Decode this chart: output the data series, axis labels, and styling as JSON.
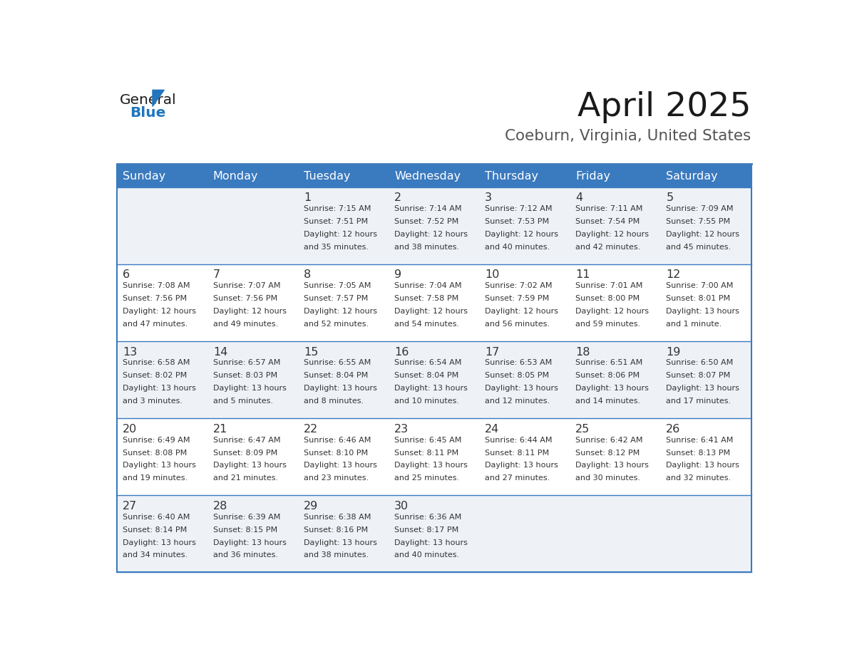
{
  "title": "April 2025",
  "subtitle": "Coeburn, Virginia, United States",
  "header_bg": "#3a7abf",
  "header_text_color": "#ffffff",
  "row_bg_light": "#eef2f7",
  "row_bg_white": "#ffffff",
  "day_headers": [
    "Sunday",
    "Monday",
    "Tuesday",
    "Wednesday",
    "Thursday",
    "Friday",
    "Saturday"
  ],
  "days": [
    {
      "day": 1,
      "col": 2,
      "row": 0,
      "sunrise": "7:15 AM",
      "sunset": "7:51 PM",
      "daylight_hrs": 12,
      "daylight_min": 35
    },
    {
      "day": 2,
      "col": 3,
      "row": 0,
      "sunrise": "7:14 AM",
      "sunset": "7:52 PM",
      "daylight_hrs": 12,
      "daylight_min": 38
    },
    {
      "day": 3,
      "col": 4,
      "row": 0,
      "sunrise": "7:12 AM",
      "sunset": "7:53 PM",
      "daylight_hrs": 12,
      "daylight_min": 40
    },
    {
      "day": 4,
      "col": 5,
      "row": 0,
      "sunrise": "7:11 AM",
      "sunset": "7:54 PM",
      "daylight_hrs": 12,
      "daylight_min": 42
    },
    {
      "day": 5,
      "col": 6,
      "row": 0,
      "sunrise": "7:09 AM",
      "sunset": "7:55 PM",
      "daylight_hrs": 12,
      "daylight_min": 45
    },
    {
      "day": 6,
      "col": 0,
      "row": 1,
      "sunrise": "7:08 AM",
      "sunset": "7:56 PM",
      "daylight_hrs": 12,
      "daylight_min": 47
    },
    {
      "day": 7,
      "col": 1,
      "row": 1,
      "sunrise": "7:07 AM",
      "sunset": "7:56 PM",
      "daylight_hrs": 12,
      "daylight_min": 49
    },
    {
      "day": 8,
      "col": 2,
      "row": 1,
      "sunrise": "7:05 AM",
      "sunset": "7:57 PM",
      "daylight_hrs": 12,
      "daylight_min": 52
    },
    {
      "day": 9,
      "col": 3,
      "row": 1,
      "sunrise": "7:04 AM",
      "sunset": "7:58 PM",
      "daylight_hrs": 12,
      "daylight_min": 54
    },
    {
      "day": 10,
      "col": 4,
      "row": 1,
      "sunrise": "7:02 AM",
      "sunset": "7:59 PM",
      "daylight_hrs": 12,
      "daylight_min": 56
    },
    {
      "day": 11,
      "col": 5,
      "row": 1,
      "sunrise": "7:01 AM",
      "sunset": "8:00 PM",
      "daylight_hrs": 12,
      "daylight_min": 59
    },
    {
      "day": 12,
      "col": 6,
      "row": 1,
      "sunrise": "7:00 AM",
      "sunset": "8:01 PM",
      "daylight_hrs": 13,
      "daylight_min": 1
    },
    {
      "day": 13,
      "col": 0,
      "row": 2,
      "sunrise": "6:58 AM",
      "sunset": "8:02 PM",
      "daylight_hrs": 13,
      "daylight_min": 3
    },
    {
      "day": 14,
      "col": 1,
      "row": 2,
      "sunrise": "6:57 AM",
      "sunset": "8:03 PM",
      "daylight_hrs": 13,
      "daylight_min": 5
    },
    {
      "day": 15,
      "col": 2,
      "row": 2,
      "sunrise": "6:55 AM",
      "sunset": "8:04 PM",
      "daylight_hrs": 13,
      "daylight_min": 8
    },
    {
      "day": 16,
      "col": 3,
      "row": 2,
      "sunrise": "6:54 AM",
      "sunset": "8:04 PM",
      "daylight_hrs": 13,
      "daylight_min": 10
    },
    {
      "day": 17,
      "col": 4,
      "row": 2,
      "sunrise": "6:53 AM",
      "sunset": "8:05 PM",
      "daylight_hrs": 13,
      "daylight_min": 12
    },
    {
      "day": 18,
      "col": 5,
      "row": 2,
      "sunrise": "6:51 AM",
      "sunset": "8:06 PM",
      "daylight_hrs": 13,
      "daylight_min": 14
    },
    {
      "day": 19,
      "col": 6,
      "row": 2,
      "sunrise": "6:50 AM",
      "sunset": "8:07 PM",
      "daylight_hrs": 13,
      "daylight_min": 17
    },
    {
      "day": 20,
      "col": 0,
      "row": 3,
      "sunrise": "6:49 AM",
      "sunset": "8:08 PM",
      "daylight_hrs": 13,
      "daylight_min": 19
    },
    {
      "day": 21,
      "col": 1,
      "row": 3,
      "sunrise": "6:47 AM",
      "sunset": "8:09 PM",
      "daylight_hrs": 13,
      "daylight_min": 21
    },
    {
      "day": 22,
      "col": 2,
      "row": 3,
      "sunrise": "6:46 AM",
      "sunset": "8:10 PM",
      "daylight_hrs": 13,
      "daylight_min": 23
    },
    {
      "day": 23,
      "col": 3,
      "row": 3,
      "sunrise": "6:45 AM",
      "sunset": "8:11 PM",
      "daylight_hrs": 13,
      "daylight_min": 25
    },
    {
      "day": 24,
      "col": 4,
      "row": 3,
      "sunrise": "6:44 AM",
      "sunset": "8:11 PM",
      "daylight_hrs": 13,
      "daylight_min": 27
    },
    {
      "day": 25,
      "col": 5,
      "row": 3,
      "sunrise": "6:42 AM",
      "sunset": "8:12 PM",
      "daylight_hrs": 13,
      "daylight_min": 30
    },
    {
      "day": 26,
      "col": 6,
      "row": 3,
      "sunrise": "6:41 AM",
      "sunset": "8:13 PM",
      "daylight_hrs": 13,
      "daylight_min": 32
    },
    {
      "day": 27,
      "col": 0,
      "row": 4,
      "sunrise": "6:40 AM",
      "sunset": "8:14 PM",
      "daylight_hrs": 13,
      "daylight_min": 34
    },
    {
      "day": 28,
      "col": 1,
      "row": 4,
      "sunrise": "6:39 AM",
      "sunset": "8:15 PM",
      "daylight_hrs": 13,
      "daylight_min": 36
    },
    {
      "day": 29,
      "col": 2,
      "row": 4,
      "sunrise": "6:38 AM",
      "sunset": "8:16 PM",
      "daylight_hrs": 13,
      "daylight_min": 38
    },
    {
      "day": 30,
      "col": 3,
      "row": 4,
      "sunrise": "6:36 AM",
      "sunset": "8:17 PM",
      "daylight_hrs": 13,
      "daylight_min": 40
    }
  ],
  "logo_color_general": "#1a1a1a",
  "logo_color_blue": "#2176bd",
  "logo_triangle_color": "#2176bd",
  "header_bg_color": "#3a7abf",
  "cell_border_color": "#3a7abf",
  "title_color": "#1a1a1a",
  "subtitle_color": "#555555",
  "text_color": "#333333",
  "num_rows": 5,
  "num_cols": 7
}
